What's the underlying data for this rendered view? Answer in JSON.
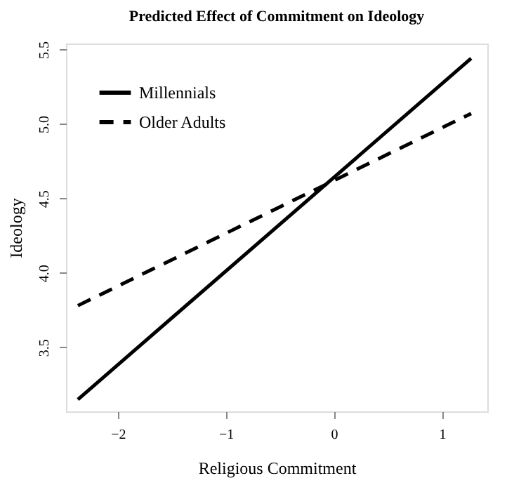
{
  "chart_data": {
    "type": "line",
    "title": "Predicted Effect of Commitment on Ideology",
    "xlabel": "Religious Commitment",
    "ylabel": "Ideology",
    "x": [
      -2.37,
      1.27
    ],
    "series": [
      {
        "name": "Millennials",
        "color": "#000000",
        "line_style": "solid",
        "values": [
          3.15,
          5.44
        ]
      },
      {
        "name": "Older Adults",
        "color": "#000000",
        "line_style": "dashed",
        "values": [
          3.78,
          5.07
        ]
      }
    ],
    "xlim": [
      -2.48,
      1.42
    ],
    "ylim": [
      3.07,
      5.54
    ],
    "xticks": [
      {
        "value": -2,
        "label": "−2"
      },
      {
        "value": -1,
        "label": "−1"
      },
      0,
      1
    ],
    "yticks": [
      {
        "value": 3.5,
        "label": "3.5"
      },
      {
        "value": 4.0,
        "label": "4.0"
      },
      {
        "value": 4.5,
        "label": "4.5"
      },
      {
        "value": 5.0,
        "label": "5.0"
      },
      {
        "value": 5.5,
        "label": "5.5"
      }
    ],
    "grid": false,
    "legend": "top left",
    "marker": "none"
  }
}
